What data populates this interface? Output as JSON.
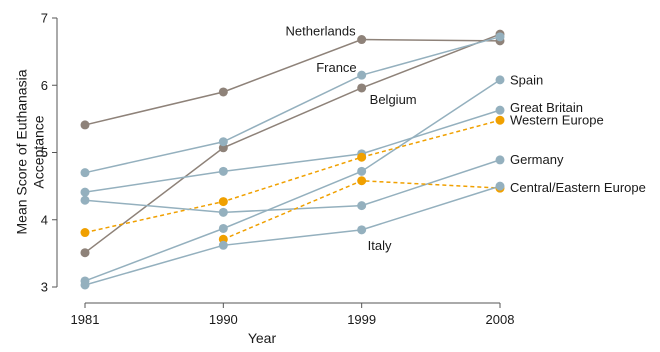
{
  "chart_data": {
    "type": "line",
    "title": "",
    "xlabel": "Year",
    "ylabel": "Mean Score of Euthanasia Acceptance",
    "x": [
      "1981",
      "1990",
      "1999",
      "2008"
    ],
    "ylim": [
      3,
      7
    ],
    "yticks": [
      3,
      4,
      5,
      6,
      7
    ],
    "grid": false,
    "legend": "none",
    "series": [
      {
        "name": "Netherlands",
        "color": "#8e8279",
        "dash": false,
        "values": [
          5.41,
          5.9,
          6.68,
          6.66
        ]
      },
      {
        "name": "Belgium",
        "color": "#8e8279",
        "dash": false,
        "values": [
          3.51,
          5.07,
          5.96,
          6.76
        ]
      },
      {
        "name": "France",
        "color": "#94b0be",
        "dash": false,
        "values": [
          4.7,
          5.16,
          6.15,
          6.72
        ]
      },
      {
        "name": "Spain",
        "color": "#94b0be",
        "dash": false,
        "values": [
          3.09,
          3.87,
          4.72,
          6.08
        ]
      },
      {
        "name": "Great Britain",
        "color": "#94b0be",
        "dash": false,
        "values": [
          4.41,
          4.72,
          4.98,
          5.63
        ]
      },
      {
        "name": "Western Europe",
        "color": "#f0a000",
        "dash": true,
        "values": [
          3.81,
          4.27,
          4.93,
          5.48
        ]
      },
      {
        "name": "Germany",
        "color": "#94b0be",
        "dash": false,
        "values": [
          4.29,
          4.11,
          4.21,
          4.89
        ]
      },
      {
        "name": "Central/Eastern Europe",
        "color": "#f0a000",
        "dash": true,
        "values": [
          null,
          3.71,
          4.58,
          4.47
        ]
      },
      {
        "name": "Italy",
        "color": "#94b0be",
        "dash": false,
        "values": [
          3.03,
          3.62,
          3.85,
          4.5
        ]
      }
    ]
  }
}
